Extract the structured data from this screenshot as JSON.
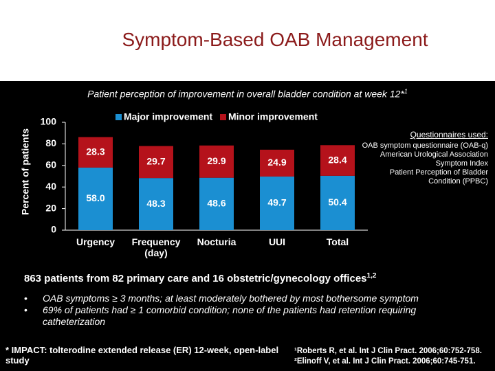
{
  "header": {
    "title": "Symptom-Based OAB Management"
  },
  "chart_data": {
    "type": "stacked-bar",
    "subtitle": "Patient perception of improvement in overall bladder condition at week 12*",
    "subtitle_sup": "1",
    "y_label": "Percent of patients",
    "categories": [
      "Urgency",
      "Frequency (day)",
      "Nocturia",
      "UUI",
      "Total"
    ],
    "series": [
      {
        "name": "Major improvement",
        "color": "#1b8fd2",
        "values": [
          58.0,
          48.3,
          48.6,
          49.7,
          50.4
        ],
        "value_labels": [
          "58.0",
          "48.3",
          "48.6",
          "49.7",
          "50.4"
        ]
      },
      {
        "name": "Minor improvement",
        "color": "#b5121b",
        "values": [
          28.3,
          29.7,
          29.9,
          24.9,
          28.4
        ],
        "value_labels": [
          "28.3",
          "29.7",
          "29.9",
          "24.9",
          "28.4"
        ]
      }
    ],
    "ylim": [
      0,
      100
    ],
    "yticks": [
      0,
      20,
      40,
      60,
      80,
      100
    ]
  },
  "side_note": {
    "heading": "Questionnaires used:",
    "items": [
      "OAB symptom questionnaire (OAB-q)",
      "American Urological Association Symptom Index",
      "Patient Perception of Bladder Condition (PPBC)"
    ]
  },
  "summary": {
    "text": "863 patients from 82 primary care and 16 obstetric/gynecology offices",
    "sup": "1,2"
  },
  "bullets": [
    "OAB symptoms ≥ 3 months; at least moderately bothered by most bothersome symptom",
    "69% of patients had ≥ 1 comorbid condition; none of the patients had retention requiring catheterization"
  ],
  "footnote": "* IMPACT: tolterodine extended release (ER) 12-week, open-label study",
  "references": [
    "¹Roberts R, et al. Int J Clin Pract. 2006;60:752-758.",
    "²Elinoff V, et al. Int J Clin Pract. 2006;60:745-751."
  ]
}
